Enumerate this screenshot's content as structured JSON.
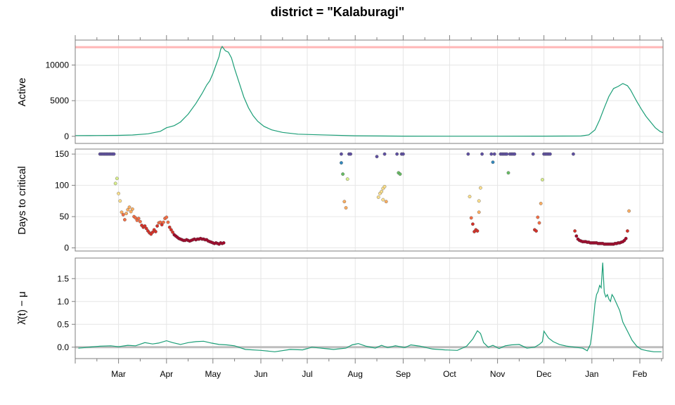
{
  "title": "district = \"Kalaburagi\"",
  "colors": {
    "line": "#1b9e77",
    "threshold_line": "#ffb6b6",
    "zero_line": "#bdbdbd",
    "critical_palette": [
      "#a50026",
      "#d73027",
      "#f46d43",
      "#fdae61",
      "#fee08b",
      "#d9ef8b",
      "#66bd63",
      "#3288bd",
      "#5e4fa2"
    ]
  },
  "x_axis": {
    "type": "date",
    "range": [
      "2021-02-01",
      "2022-02-16"
    ],
    "tick_labels": [
      "Mar",
      "Apr",
      "May",
      "Jun",
      "Jul",
      "Aug",
      "Sep",
      "Oct",
      "Nov",
      "Dec",
      "Jan",
      "Feb"
    ],
    "tick_dates": [
      "2021-03-01",
      "2021-04-01",
      "2021-05-01",
      "2021-06-01",
      "2021-07-01",
      "2021-08-01",
      "2021-09-01",
      "2021-10-01",
      "2021-11-01",
      "2021-12-01",
      "2022-01-01",
      "2022-02-01"
    ]
  },
  "chart_data": [
    {
      "type": "line",
      "id": "active",
      "ylabel": "Active",
      "ylim": [
        -1000,
        13500
      ],
      "yticks": [
        0,
        5000,
        10000
      ],
      "grid": true,
      "reference_line": 12500,
      "series": [
        {
          "x": [
            "2021-02-01",
            "2021-02-15",
            "2021-03-01",
            "2021-03-10",
            "2021-03-20",
            "2021-03-28",
            "2021-04-01",
            "2021-04-06",
            "2021-04-10",
            "2021-04-15",
            "2021-04-20",
            "2021-04-24",
            "2021-04-27",
            "2021-04-29",
            "2021-05-01",
            "2021-05-03",
            "2021-05-05",
            "2021-05-06",
            "2021-05-07",
            "2021-05-08",
            "2021-05-09",
            "2021-05-11",
            "2021-05-13",
            "2021-05-15",
            "2021-05-18",
            "2021-05-21",
            "2021-05-24",
            "2021-05-27",
            "2021-05-30",
            "2021-06-03",
            "2021-06-08",
            "2021-06-15",
            "2021-06-25",
            "2021-07-10",
            "2021-08-01",
            "2021-09-01",
            "2021-10-01",
            "2021-11-01",
            "2021-12-01",
            "2021-12-25",
            "2021-12-30",
            "2022-01-03",
            "2022-01-06",
            "2022-01-09",
            "2022-01-12",
            "2022-01-15",
            "2022-01-18",
            "2022-01-21",
            "2022-01-24",
            "2022-01-26",
            "2022-01-28",
            "2022-01-30",
            "2022-02-02",
            "2022-02-05",
            "2022-02-08",
            "2022-02-11",
            "2022-02-14",
            "2022-02-16"
          ],
          "y": [
            100,
            110,
            130,
            180,
            350,
            700,
            1200,
            1500,
            2000,
            3100,
            4600,
            6000,
            7200,
            7800,
            8800,
            10000,
            11200,
            12200,
            12600,
            12300,
            12000,
            11800,
            11000,
            9500,
            7500,
            5500,
            4000,
            2900,
            2100,
            1400,
            900,
            550,
            300,
            200,
            80,
            30,
            20,
            20,
            30,
            50,
            200,
            900,
            2300,
            4000,
            5600,
            6700,
            7000,
            7400,
            7100,
            6500,
            5700,
            4900,
            3800,
            2800,
            2000,
            1200,
            700,
            500
          ]
        }
      ]
    },
    {
      "type": "scatter",
      "id": "days_to_critical",
      "ylabel": "Days to critical",
      "ylim": [
        -5,
        158
      ],
      "yticks": [
        0,
        50,
        100,
        150
      ],
      "grid": true,
      "color_scale": "value mapped to palette, low = red, high = purple",
      "points": [
        [
          "2021-02-17",
          150
        ],
        [
          "2021-02-18",
          150
        ],
        [
          "2021-02-19",
          150
        ],
        [
          "2021-02-20",
          150
        ],
        [
          "2021-02-21",
          150
        ],
        [
          "2021-02-22",
          150
        ],
        [
          "2021-02-23",
          150
        ],
        [
          "2021-02-24",
          150
        ],
        [
          "2021-02-25",
          150
        ],
        [
          "2021-02-26",
          150
        ],
        [
          "2021-02-27",
          103
        ],
        [
          "2021-02-28",
          111
        ],
        [
          "2021-03-01",
          87
        ],
        [
          "2021-03-02",
          75
        ],
        [
          "2021-03-03",
          57
        ],
        [
          "2021-03-04",
          53
        ],
        [
          "2021-03-05",
          45
        ],
        [
          "2021-03-06",
          55
        ],
        [
          "2021-03-07",
          61
        ],
        [
          "2021-03-08",
          65
        ],
        [
          "2021-03-09",
          58
        ],
        [
          "2021-03-10",
          62
        ],
        [
          "2021-03-11",
          50
        ],
        [
          "2021-03-12",
          48
        ],
        [
          "2021-03-13",
          44
        ],
        [
          "2021-03-14",
          47
        ],
        [
          "2021-03-15",
          42
        ],
        [
          "2021-03-16",
          36
        ],
        [
          "2021-03-17",
          33
        ],
        [
          "2021-03-18",
          35
        ],
        [
          "2021-03-19",
          31
        ],
        [
          "2021-03-20",
          27
        ],
        [
          "2021-03-21",
          24
        ],
        [
          "2021-03-22",
          22
        ],
        [
          "2021-03-23",
          25
        ],
        [
          "2021-03-24",
          29
        ],
        [
          "2021-03-25",
          26
        ],
        [
          "2021-03-26",
          35
        ],
        [
          "2021-03-27",
          40
        ],
        [
          "2021-03-28",
          41
        ],
        [
          "2021-03-29",
          37
        ],
        [
          "2021-03-30",
          41
        ],
        [
          "2021-03-31",
          47
        ],
        [
          "2021-04-01",
          49
        ],
        [
          "2021-04-02",
          41
        ],
        [
          "2021-04-03",
          33
        ],
        [
          "2021-04-04",
          29
        ],
        [
          "2021-04-05",
          25
        ],
        [
          "2021-04-06",
          21
        ],
        [
          "2021-04-07",
          19
        ],
        [
          "2021-04-08",
          17
        ],
        [
          "2021-04-09",
          15
        ],
        [
          "2021-04-10",
          14
        ],
        [
          "2021-04-11",
          13
        ],
        [
          "2021-04-12",
          12
        ],
        [
          "2021-04-13",
          12
        ],
        [
          "2021-04-14",
          13
        ],
        [
          "2021-04-15",
          12
        ],
        [
          "2021-04-16",
          11
        ],
        [
          "2021-04-17",
          12
        ],
        [
          "2021-04-18",
          13
        ],
        [
          "2021-04-19",
          14
        ],
        [
          "2021-04-20",
          13
        ],
        [
          "2021-04-21",
          14
        ],
        [
          "2021-04-22",
          14
        ],
        [
          "2021-04-23",
          15
        ],
        [
          "2021-04-24",
          14
        ],
        [
          "2021-04-25",
          14
        ],
        [
          "2021-04-26",
          13
        ],
        [
          "2021-04-27",
          13
        ],
        [
          "2021-04-28",
          11
        ],
        [
          "2021-04-29",
          10
        ],
        [
          "2021-04-30",
          9
        ],
        [
          "2021-05-01",
          8
        ],
        [
          "2021-05-02",
          7
        ],
        [
          "2021-05-03",
          8
        ],
        [
          "2021-05-04",
          7
        ],
        [
          "2021-05-05",
          6
        ],
        [
          "2021-05-06",
          8
        ],
        [
          "2021-05-07",
          7
        ],
        [
          "2021-05-08",
          8
        ],
        [
          "2021-07-23",
          150
        ],
        [
          "2021-07-23",
          136
        ],
        [
          "2021-07-24",
          118
        ],
        [
          "2021-07-25",
          74
        ],
        [
          "2021-07-26",
          64
        ],
        [
          "2021-07-27",
          110
        ],
        [
          "2021-07-28",
          150
        ],
        [
          "2021-07-29",
          150
        ],
        [
          "2021-08-15",
          146
        ],
        [
          "2021-08-16",
          81
        ],
        [
          "2021-08-17",
          87
        ],
        [
          "2021-08-18",
          90
        ],
        [
          "2021-08-19",
          95
        ],
        [
          "2021-08-19",
          77
        ],
        [
          "2021-08-20",
          150
        ],
        [
          "2021-08-20",
          98
        ],
        [
          "2021-08-21",
          74
        ],
        [
          "2021-08-28",
          150
        ],
        [
          "2021-08-29",
          120
        ],
        [
          "2021-08-30",
          118
        ],
        [
          "2021-08-31",
          150
        ],
        [
          "2021-09-01",
          150
        ],
        [
          "2021-10-13",
          150
        ],
        [
          "2021-10-14",
          82
        ],
        [
          "2021-10-15",
          48
        ],
        [
          "2021-10-16",
          38
        ],
        [
          "2021-10-17",
          26
        ],
        [
          "2021-10-18",
          29
        ],
        [
          "2021-10-19",
          27
        ],
        [
          "2021-10-20",
          57
        ],
        [
          "2021-10-20",
          75
        ],
        [
          "2021-10-21",
          96
        ],
        [
          "2021-10-22",
          150
        ],
        [
          "2021-10-28",
          150
        ],
        [
          "2021-10-29",
          137
        ],
        [
          "2021-10-30",
          150
        ],
        [
          "2021-11-03",
          150
        ],
        [
          "2021-11-04",
          150
        ],
        [
          "2021-11-05",
          150
        ],
        [
          "2021-11-06",
          150
        ],
        [
          "2021-11-07",
          150
        ],
        [
          "2021-11-08",
          120
        ],
        [
          "2021-11-09",
          150
        ],
        [
          "2021-11-10",
          150
        ],
        [
          "2021-11-11",
          150
        ],
        [
          "2021-11-12",
          150
        ],
        [
          "2021-11-24",
          150
        ],
        [
          "2021-11-25",
          29
        ],
        [
          "2021-11-26",
          27
        ],
        [
          "2021-11-27",
          49
        ],
        [
          "2021-11-28",
          40
        ],
        [
          "2021-11-29",
          71
        ],
        [
          "2021-11-30",
          109
        ],
        [
          "2021-12-01",
          150
        ],
        [
          "2021-12-02",
          150
        ],
        [
          "2021-12-03",
          150
        ],
        [
          "2021-12-04",
          150
        ],
        [
          "2021-12-05",
          150
        ],
        [
          "2021-12-20",
          150
        ],
        [
          "2021-12-21",
          27
        ],
        [
          "2021-12-22",
          19
        ],
        [
          "2021-12-23",
          14
        ],
        [
          "2021-12-24",
          12
        ],
        [
          "2021-12-25",
          11
        ],
        [
          "2021-12-26",
          10
        ],
        [
          "2021-12-27",
          10
        ],
        [
          "2021-12-28",
          10
        ],
        [
          "2021-12-29",
          9
        ],
        [
          "2021-12-30",
          9
        ],
        [
          "2021-12-31",
          8
        ],
        [
          "2022-01-01",
          8
        ],
        [
          "2022-01-02",
          8
        ],
        [
          "2022-01-03",
          8
        ],
        [
          "2022-01-04",
          8
        ],
        [
          "2022-01-05",
          7
        ],
        [
          "2022-01-06",
          7
        ],
        [
          "2022-01-07",
          7
        ],
        [
          "2022-01-08",
          7
        ],
        [
          "2022-01-09",
          6
        ],
        [
          "2022-01-10",
          6
        ],
        [
          "2022-01-11",
          6
        ],
        [
          "2022-01-12",
          6
        ],
        [
          "2022-01-13",
          6
        ],
        [
          "2022-01-14",
          6
        ],
        [
          "2022-01-15",
          6
        ],
        [
          "2022-01-16",
          7
        ],
        [
          "2022-01-17",
          7
        ],
        [
          "2022-01-18",
          8
        ],
        [
          "2022-01-19",
          8
        ],
        [
          "2022-01-20",
          9
        ],
        [
          "2022-01-21",
          10
        ],
        [
          "2022-01-22",
          12
        ],
        [
          "2022-01-23",
          15
        ],
        [
          "2022-01-24",
          27
        ],
        [
          "2022-01-25",
          59
        ]
      ]
    },
    {
      "type": "line",
      "id": "lambda",
      "ylabel": "λ̂(t) − μ",
      "ylim": [
        -0.25,
        1.95
      ],
      "yticks": [
        0.0,
        0.5,
        1.0,
        1.5
      ],
      "grid": true,
      "reference_line": 0,
      "series": [
        {
          "x": [
            "2021-02-03",
            "2021-02-10",
            "2021-02-17",
            "2021-02-24",
            "2021-03-01",
            "2021-03-07",
            "2021-03-12",
            "2021-03-18",
            "2021-03-23",
            "2021-03-27",
            "2021-04-01",
            "2021-04-05",
            "2021-04-10",
            "2021-04-15",
            "2021-04-20",
            "2021-04-25",
            "2021-04-30",
            "2021-05-05",
            "2021-05-10",
            "2021-05-15",
            "2021-05-22",
            "2021-06-01",
            "2021-06-10",
            "2021-06-20",
            "2021-06-28",
            "2021-07-04",
            "2021-07-10",
            "2021-07-18",
            "2021-07-26",
            "2021-07-30",
            "2021-08-03",
            "2021-08-08",
            "2021-08-14",
            "2021-08-18",
            "2021-08-22",
            "2021-08-27",
            "2021-09-02",
            "2021-09-06",
            "2021-09-12",
            "2021-09-20",
            "2021-09-28",
            "2021-10-06",
            "2021-10-12",
            "2021-10-16",
            "2021-10-19",
            "2021-10-21",
            "2021-10-23",
            "2021-10-26",
            "2021-10-29",
            "2021-11-02",
            "2021-11-06",
            "2021-11-10",
            "2021-11-15",
            "2021-11-20",
            "2021-11-25",
            "2021-11-28",
            "2021-11-30",
            "2021-12-01",
            "2021-12-02",
            "2021-12-04",
            "2021-12-07",
            "2021-12-11",
            "2021-12-16",
            "2021-12-21",
            "2021-12-26",
            "2021-12-29",
            "2021-12-31",
            "2022-01-01",
            "2022-01-02",
            "2022-01-03",
            "2022-01-04",
            "2022-01-05",
            "2022-01-06",
            "2022-01-07",
            "2022-01-08",
            "2022-01-09",
            "2022-01-10",
            "2022-01-11",
            "2022-01-12",
            "2022-01-13",
            "2022-01-14",
            "2022-01-15",
            "2022-01-17",
            "2022-01-19",
            "2022-01-21",
            "2022-01-24",
            "2022-01-27",
            "2022-01-30",
            "2022-02-02",
            "2022-02-06",
            "2022-02-10",
            "2022-02-15"
          ],
          "y": [
            -0.02,
            0.0,
            0.02,
            0.03,
            0.01,
            0.04,
            0.03,
            0.1,
            0.07,
            0.09,
            0.14,
            0.1,
            0.06,
            0.1,
            0.12,
            0.13,
            0.09,
            0.06,
            0.05,
            0.03,
            -0.05,
            -0.07,
            -0.1,
            -0.05,
            -0.06,
            0.0,
            -0.02,
            -0.05,
            -0.02,
            0.05,
            0.08,
            0.02,
            -0.02,
            0.04,
            -0.01,
            0.03,
            -0.01,
            0.05,
            0.02,
            -0.04,
            -0.06,
            -0.07,
            0.02,
            0.18,
            0.36,
            0.3,
            0.1,
            0.0,
            0.04,
            -0.03,
            0.03,
            0.05,
            0.06,
            -0.02,
            0.0,
            0.06,
            0.12,
            0.35,
            0.3,
            0.2,
            0.12,
            0.06,
            0.02,
            0.0,
            -0.02,
            -0.08,
            0.06,
            0.3,
            0.6,
            0.95,
            1.15,
            1.22,
            1.35,
            1.3,
            1.85,
            1.2,
            1.1,
            1.15,
            1.05,
            1.0,
            1.15,
            1.1,
            0.95,
            0.8,
            0.55,
            0.35,
            0.15,
            0.02,
            -0.05,
            -0.08,
            -0.1,
            -0.1
          ]
        }
      ]
    }
  ]
}
